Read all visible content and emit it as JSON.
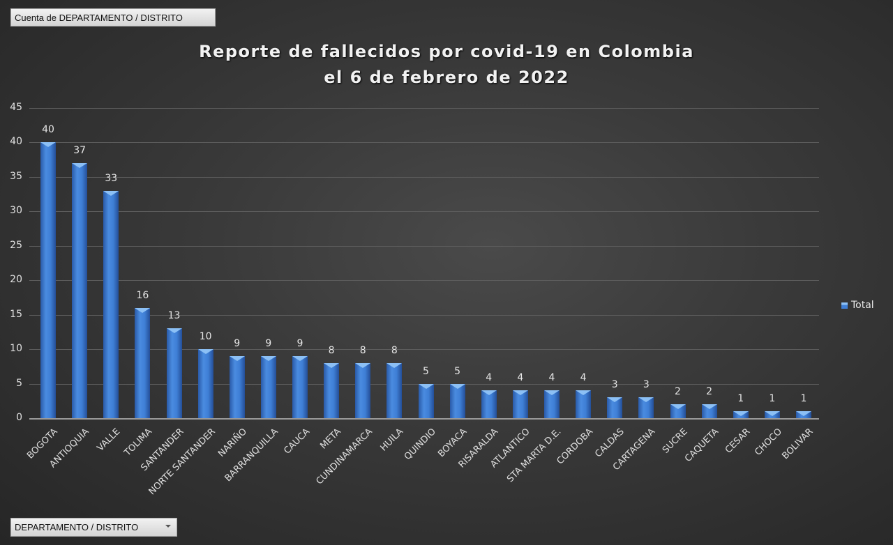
{
  "pivot": {
    "value_field_label": "Cuenta de DEPARTAMENTO / DISTRITO",
    "axis_field_label": "DEPARTAMENTO / DISTRITO"
  },
  "legend": {
    "label": "Total"
  },
  "chart_data": {
    "type": "bar",
    "title": "Reporte de fallecidos por covid-19 en Colombia el 6 de febrero de 2022",
    "title_lines": [
      "Reporte de fallecidos por covid-19 en Colombia",
      "el 6 de febrero de 2022"
    ],
    "xlabel": "",
    "ylabel": "",
    "ylim": [
      0,
      45
    ],
    "yticks": [
      0,
      5,
      10,
      15,
      20,
      25,
      30,
      35,
      40,
      45
    ],
    "grid": true,
    "legend_position": "right",
    "categories": [
      "BOGOTA",
      "ANTIOQUIA",
      "VALLE",
      "TOLIMA",
      "SANTANDER",
      "NORTE SANTANDER",
      "NARIÑO",
      "BARRANQUILLA",
      "CAUCA",
      "META",
      "CUNDINAMARCA",
      "HUILA",
      "QUINDIO",
      "BOYACA",
      "RISARALDA",
      "ATLANTICO",
      "STA MARTA D.E.",
      "CORDOBA",
      "CALDAS",
      "CARTAGENA",
      "SUCRE",
      "CAQUETA",
      "CESAR",
      "CHOCO",
      "BOLIVAR"
    ],
    "series": [
      {
        "name": "Total",
        "values": [
          40,
          37,
          33,
          16,
          13,
          10,
          9,
          9,
          9,
          8,
          8,
          8,
          5,
          5,
          4,
          4,
          4,
          4,
          3,
          3,
          2,
          2,
          1,
          1,
          1
        ],
        "color": "#3f7fd6"
      }
    ]
  }
}
